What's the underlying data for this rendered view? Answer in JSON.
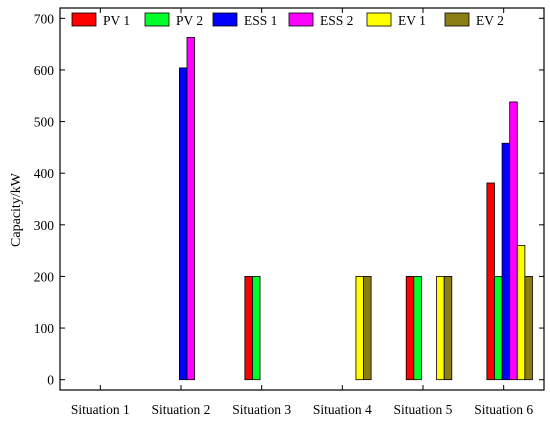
{
  "chart_data": {
    "type": "bar",
    "title": "",
    "xlabel": "",
    "ylabel": "Capacity/kW",
    "ylim": [
      -20,
      720
    ],
    "yticks": [
      0,
      100,
      200,
      300,
      400,
      500,
      600,
      700
    ],
    "grid": false,
    "legend_position": "top",
    "categories": [
      "Situation 1",
      "Situation 2",
      "Situation 3",
      "Situation 4",
      "Situation 5",
      "Situation 6"
    ],
    "series": [
      {
        "name": "PV 1",
        "color": "#ff0000",
        "values": [
          0,
          0,
          200,
          0,
          200,
          381
        ]
      },
      {
        "name": "PV 2",
        "color": "#00ff2a",
        "values": [
          0,
          0,
          200,
          0,
          200,
          200
        ]
      },
      {
        "name": "ESS 1",
        "color": "#0000ff",
        "values": [
          0,
          604,
          0,
          0,
          0,
          458
        ]
      },
      {
        "name": "ESS 2",
        "color": "#ff00ff",
        "values": [
          0,
          663,
          0,
          0,
          0,
          538
        ]
      },
      {
        "name": "EV 1",
        "color": "#ffff00",
        "values": [
          0,
          0,
          0,
          200,
          200,
          260
        ]
      },
      {
        "name": "EV 2",
        "color": "#8b7d16",
        "values": [
          0,
          0,
          0,
          200,
          200,
          200
        ]
      }
    ]
  }
}
